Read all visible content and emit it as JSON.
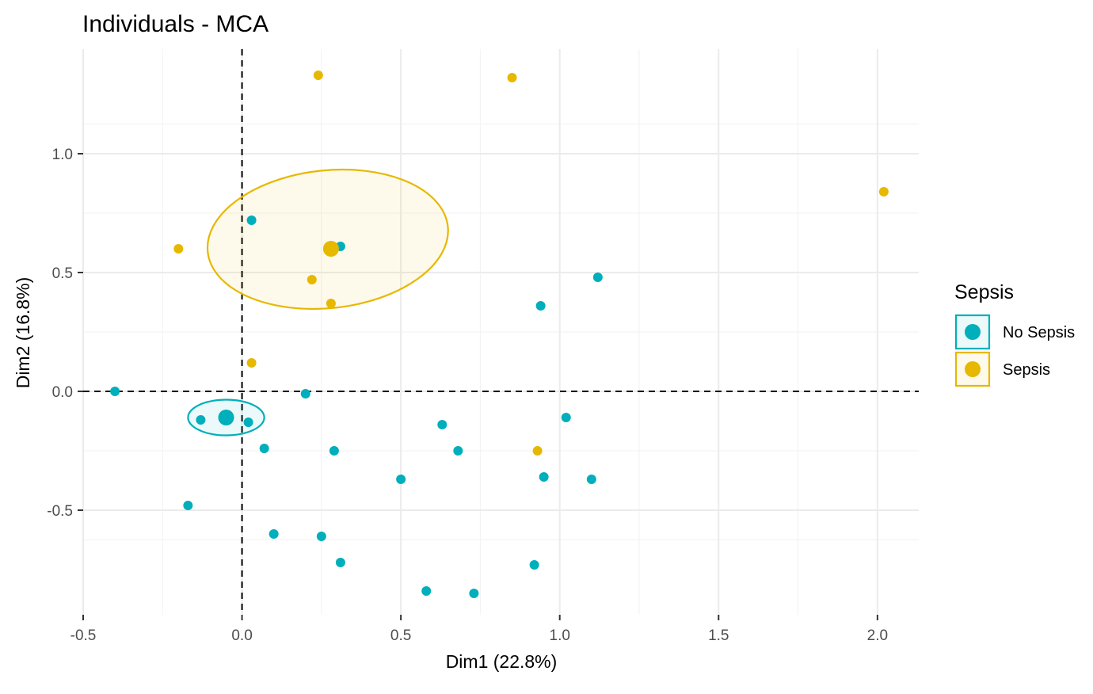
{
  "chart_data": {
    "type": "scatter",
    "title": "Individuals - MCA",
    "xlabel": "Dim1 (22.8%)",
    "ylabel": "Dim2 (16.8%)",
    "xlim": [
      -0.5,
      2.13
    ],
    "ylim": [
      -0.94,
      1.44
    ],
    "x_ticks": [
      -0.5,
      0.0,
      0.5,
      1.0,
      1.5,
      2.0
    ],
    "x_tick_labels": [
      "-0.5",
      "0.0",
      "0.5",
      "1.0",
      "1.5",
      "2.0"
    ],
    "y_ticks": [
      -0.5,
      0.0,
      0.5,
      1.0
    ],
    "y_tick_labels": [
      "-0.5",
      "0.0",
      "0.5",
      "1.0"
    ],
    "grid": true,
    "reference_lines": {
      "x": 0,
      "y": 0,
      "style": "dashed"
    },
    "legend": {
      "title": "Sepsis",
      "position": "right"
    },
    "series": [
      {
        "name": "No Sepsis",
        "color": "#00AFBB",
        "points": [
          [
            -0.4,
            0.0
          ],
          [
            -0.13,
            -0.12
          ],
          [
            0.02,
            -0.13
          ],
          [
            -0.17,
            -0.48
          ],
          [
            0.03,
            0.72
          ],
          [
            0.31,
            0.61
          ],
          [
            0.2,
            -0.01
          ],
          [
            0.07,
            -0.24
          ],
          [
            0.29,
            -0.25
          ],
          [
            0.1,
            -0.6
          ],
          [
            0.25,
            -0.61
          ],
          [
            0.31,
            -0.72
          ],
          [
            0.5,
            -0.37
          ],
          [
            0.58,
            -0.84
          ],
          [
            0.63,
            -0.14
          ],
          [
            0.68,
            -0.25
          ],
          [
            0.73,
            -0.85
          ],
          [
            0.92,
            -0.73
          ],
          [
            0.94,
            0.36
          ],
          [
            0.95,
            -0.36
          ],
          [
            1.02,
            -0.11
          ],
          [
            1.1,
            -0.37
          ],
          [
            1.12,
            0.48
          ]
        ],
        "centroid": [
          -0.05,
          -0.11
        ],
        "ellipse": {
          "cx": -0.05,
          "cy": -0.11,
          "rx": 0.12,
          "ry": 0.075,
          "angle": 0
        }
      },
      {
        "name": "Sepsis",
        "color": "#E7B800",
        "points": [
          [
            -0.2,
            0.6
          ],
          [
            0.03,
            0.12
          ],
          [
            0.22,
            0.47
          ],
          [
            0.24,
            1.33
          ],
          [
            0.28,
            0.37
          ],
          [
            0.85,
            1.32
          ],
          [
            0.93,
            -0.25
          ],
          [
            2.02,
            0.84
          ]
        ],
        "centroid": [
          0.28,
          0.6
        ],
        "ellipse": {
          "cx": 0.27,
          "cy": 0.64,
          "rx": 0.38,
          "ry": 0.29,
          "angle": -6
        }
      }
    ]
  }
}
